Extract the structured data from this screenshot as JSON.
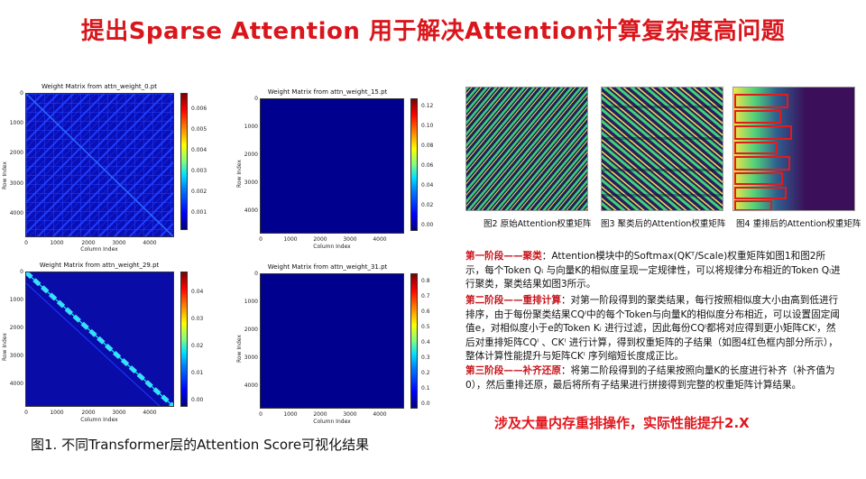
{
  "slide": {
    "title": "提出Sparse Attention 用于解决Attention计算复杂度高问题"
  },
  "heatmaps": [
    {
      "title": "Weight Matrix from attn_weight_0.pt",
      "y_ticks": [
        "0",
        "1000",
        "2000",
        "3000",
        "4000"
      ],
      "x_ticks": [
        "0",
        "1000",
        "2000",
        "3000",
        "4000"
      ],
      "xlabel": "Column Index",
      "ylabel": "Row Index",
      "colorbar_ticks": [
        "0.006",
        "0.005",
        "0.004",
        "0.003",
        "0.002",
        "0.001"
      ]
    },
    {
      "title": "Weight Matrix from attn_weight_15.pt",
      "y_ticks": [
        "0",
        "1000",
        "2000",
        "3000",
        "4000"
      ],
      "x_ticks": [
        "0",
        "1000",
        "2000",
        "3000",
        "4000"
      ],
      "xlabel": "Column Index",
      "ylabel": "Row Index",
      "colorbar_ticks": [
        "0.12",
        "0.10",
        "0.08",
        "0.06",
        "0.04",
        "0.02",
        "0.00"
      ]
    },
    {
      "title": "Weight Matrix from attn_weight_29.pt",
      "y_ticks": [
        "0",
        "1000",
        "2000",
        "3000",
        "4000"
      ],
      "x_ticks": [
        "0",
        "1000",
        "2000",
        "3000",
        "4000"
      ],
      "xlabel": "Column Index",
      "ylabel": "Row Index",
      "colorbar_ticks": [
        "0.04",
        "0.03",
        "0.02",
        "0.01",
        "0.00"
      ]
    },
    {
      "title": "Weight Matrix from attn_weight_31.pt",
      "y_ticks": [
        "0",
        "1000",
        "2000",
        "3000",
        "4000"
      ],
      "x_ticks": [
        "0",
        "1000",
        "2000",
        "3000",
        "4000"
      ],
      "xlabel": "Column Index",
      "ylabel": "Row Index",
      "colorbar_ticks": [
        "0.8",
        "0.7",
        "0.6",
        "0.5",
        "0.4",
        "0.3",
        "0.2",
        "0.1",
        "0.0"
      ]
    }
  ],
  "figure1_caption": "图1. 不同Transformer层的Attention Score可视化结果",
  "figures_right": [
    {
      "caption": "图2 原始Attention权重矩阵"
    },
    {
      "caption": "图3 聚类后的Attention权重矩阵"
    },
    {
      "caption": "图4 重排后的Attention权重矩阵"
    }
  ],
  "stages": [
    {
      "label": "第一阶段——聚类",
      "text": "：Attention模块中的Softmax(QKᵀ/Scale)权重矩阵如图1和图2所示，每个Token Qᵢ 与向量K的相似度呈现一定规律性，可以将规律分布相近的Token Qᵢ进行聚类，聚类结果如图3所示。"
    },
    {
      "label": "第二阶段——重排计算",
      "text": "：对第一阶段得到的聚类结果，每行按照相似度大小由高到低进行排序，由于每份聚类结果CQⁱ中的每个Token与向量K的相似度分布相近，可以设置固定阈值e，对相似度小于e的Token Kᵢ 进行过滤，因此每份CQⁱ都将对应得到更小矩阵CKⁱ，然后对重排矩阵CQⁱ 、CKⁱ 进行计算，得到权重矩阵的子结果（如图4红色框内部分所示），整体计算性能提升与矩阵CKⁱ 序列缩短长度成正比。"
    },
    {
      "label": "第三阶段——补齐还原",
      "text": "：将第二阶段得到的子结果按照向量K的长度进行补齐（补齐值为0），然后重排还原，最后将所有子结果进行拼接得到完整的权重矩阵计算结果。"
    }
  ],
  "bottom_note": "涉及大量内存重排操作，实际性能提升2.X",
  "colors": {
    "title_red": "#d9161c",
    "stage_red": "#c8141b",
    "heatmap_bg": "#00008f"
  }
}
